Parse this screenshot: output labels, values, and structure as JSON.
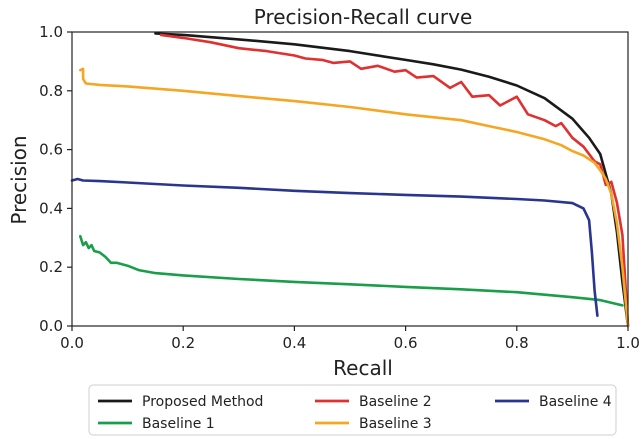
{
  "chart_data": {
    "type": "line",
    "title": "Precision-Recall curve",
    "xlabel": "Recall",
    "ylabel": "Precision",
    "xlim": [
      0.0,
      1.0
    ],
    "ylim": [
      0.0,
      1.0
    ],
    "xticks": [
      "0.0",
      "0.2",
      "0.4",
      "0.6",
      "0.8",
      "1.0"
    ],
    "yticks": [
      "0.0",
      "0.2",
      "0.4",
      "0.6",
      "0.8",
      "1.0"
    ],
    "grid": false,
    "legend_position": "below",
    "series": [
      {
        "name": "Proposed Method",
        "color": "#1a1a1a",
        "x": [
          0.15,
          0.2,
          0.3,
          0.4,
          0.5,
          0.6,
          0.65,
          0.7,
          0.75,
          0.8,
          0.85,
          0.9,
          0.93,
          0.95,
          0.97,
          0.98,
          0.99,
          1.0
        ],
        "y": [
          0.995,
          0.99,
          0.975,
          0.958,
          0.935,
          0.905,
          0.89,
          0.872,
          0.848,
          0.818,
          0.775,
          0.705,
          0.64,
          0.585,
          0.45,
          0.32,
          0.15,
          0.0
        ]
      },
      {
        "name": "Baseline 1",
        "color": "#1a9e4a",
        "x": [
          0.015,
          0.02,
          0.025,
          0.03,
          0.035,
          0.04,
          0.05,
          0.06,
          0.07,
          0.08,
          0.1,
          0.12,
          0.15,
          0.2,
          0.3,
          0.4,
          0.5,
          0.6,
          0.7,
          0.8,
          0.9,
          0.95,
          0.99
        ],
        "y": [
          0.305,
          0.275,
          0.285,
          0.265,
          0.275,
          0.255,
          0.25,
          0.235,
          0.215,
          0.215,
          0.205,
          0.19,
          0.18,
          0.172,
          0.16,
          0.15,
          0.142,
          0.133,
          0.125,
          0.115,
          0.098,
          0.088,
          0.07
        ]
      },
      {
        "name": "Baseline 2",
        "color": "#e03030",
        "x": [
          0.16,
          0.2,
          0.25,
          0.3,
          0.35,
          0.4,
          0.42,
          0.45,
          0.47,
          0.5,
          0.52,
          0.55,
          0.58,
          0.6,
          0.62,
          0.65,
          0.68,
          0.7,
          0.72,
          0.75,
          0.77,
          0.8,
          0.82,
          0.85,
          0.87,
          0.88,
          0.9,
          0.92,
          0.94,
          0.95,
          0.96,
          0.97,
          0.98,
          0.99,
          1.0
        ],
        "y": [
          0.99,
          0.98,
          0.965,
          0.945,
          0.935,
          0.92,
          0.91,
          0.905,
          0.895,
          0.9,
          0.875,
          0.885,
          0.865,
          0.87,
          0.845,
          0.85,
          0.81,
          0.83,
          0.78,
          0.785,
          0.75,
          0.78,
          0.72,
          0.7,
          0.68,
          0.69,
          0.64,
          0.61,
          0.56,
          0.55,
          0.48,
          0.49,
          0.42,
          0.31,
          0.0
        ]
      },
      {
        "name": "Baseline 3",
        "color": "#f5a623",
        "x": [
          0.015,
          0.02,
          0.02,
          0.025,
          0.05,
          0.1,
          0.2,
          0.3,
          0.4,
          0.5,
          0.6,
          0.7,
          0.75,
          0.8,
          0.85,
          0.88,
          0.9,
          0.92,
          0.94,
          0.95,
          0.96,
          0.97,
          0.98,
          0.99,
          1.0
        ],
        "y": [
          0.87,
          0.875,
          0.84,
          0.825,
          0.82,
          0.815,
          0.8,
          0.782,
          0.765,
          0.745,
          0.72,
          0.7,
          0.68,
          0.66,
          0.635,
          0.615,
          0.595,
          0.58,
          0.555,
          0.53,
          0.5,
          0.45,
          0.35,
          0.2,
          0.0
        ]
      },
      {
        "name": "Baseline 4",
        "color": "#2a3590",
        "x": [
          0.0,
          0.01,
          0.02,
          0.05,
          0.1,
          0.2,
          0.3,
          0.4,
          0.5,
          0.6,
          0.7,
          0.8,
          0.85,
          0.9,
          0.92,
          0.93,
          0.935,
          0.94,
          0.945
        ],
        "y": [
          0.495,
          0.5,
          0.495,
          0.493,
          0.488,
          0.478,
          0.47,
          0.46,
          0.452,
          0.446,
          0.44,
          0.432,
          0.427,
          0.418,
          0.4,
          0.36,
          0.25,
          0.12,
          0.035
        ]
      }
    ]
  }
}
